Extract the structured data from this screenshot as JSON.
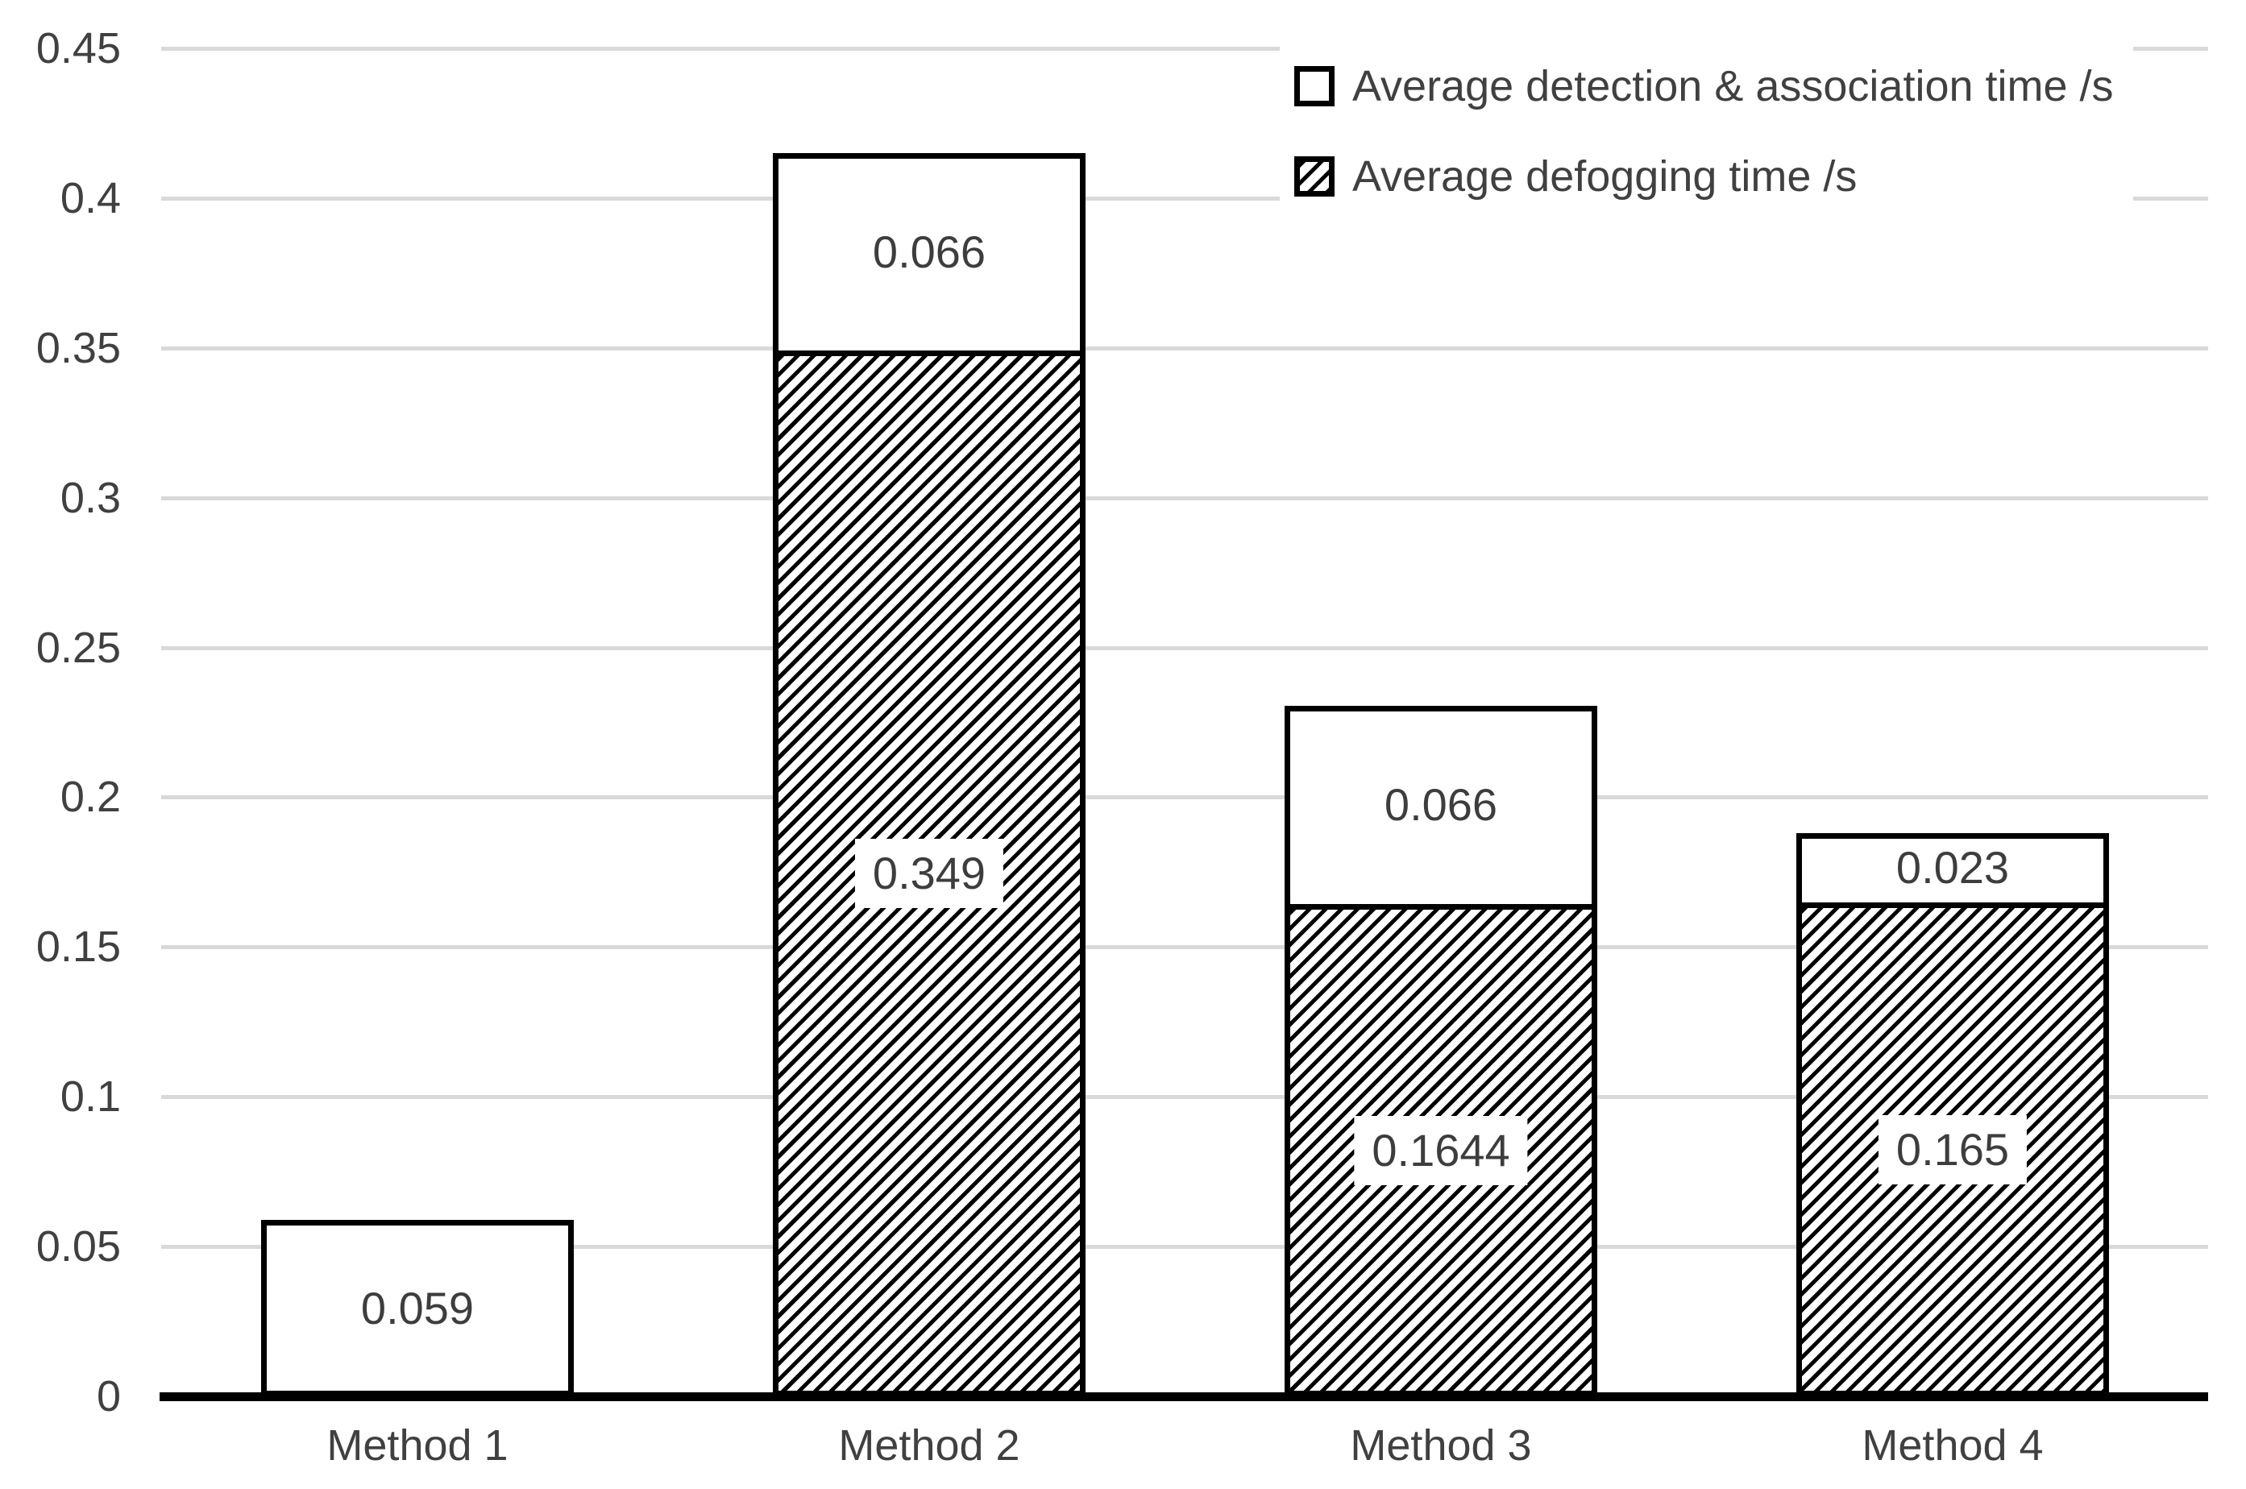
{
  "chart_data": {
    "type": "bar",
    "variant": "stacked",
    "title": "",
    "xlabel": "",
    "ylabel": "",
    "categories": [
      "Method 1",
      "Method 2",
      "Method 3",
      "Method 4"
    ],
    "series": [
      {
        "name": "Average defogging time /s",
        "pattern": "diagonal-hatch",
        "values": [
          0,
          0.349,
          0.1644,
          0.165
        ],
        "labels": [
          "",
          "0.349",
          "0.1644",
          "0.165"
        ]
      },
      {
        "name": "Average detection & association time /s",
        "pattern": "solid-white",
        "values": [
          0.059,
          0.066,
          0.066,
          0.023
        ],
        "labels": [
          "0.059",
          "0.066",
          "0.066",
          "0.023"
        ]
      }
    ],
    "stack_totals": [
      0.059,
      0.415,
      0.2304,
      0.188
    ],
    "ylim": [
      0,
      0.45
    ],
    "ytick_labels": [
      "0.45",
      "0.4",
      "0.35",
      "0.3",
      "0.25",
      "0.2",
      "0.15",
      "0.1",
      "0.05",
      "0"
    ],
    "ytick_values": [
      0.45,
      0.4,
      0.35,
      0.3,
      0.25,
      0.2,
      0.15,
      0.1,
      0.05,
      0
    ],
    "grid": "horizontal",
    "legend_position": "top-right"
  },
  "legend": {
    "items": [
      {
        "label": "Average detection & association time /s",
        "swatch": "white-square"
      },
      {
        "label": "Average defogging time /s",
        "swatch": "hatched-square"
      }
    ]
  },
  "colors": {
    "background": "#ffffff",
    "bar_fill": "#ffffff",
    "bar_border": "#000000",
    "hatch": "#000000",
    "gridline": "#d9d9d9",
    "axis_line": "#000000",
    "text": "#404040",
    "data_label_text": "#3d3d3d"
  }
}
